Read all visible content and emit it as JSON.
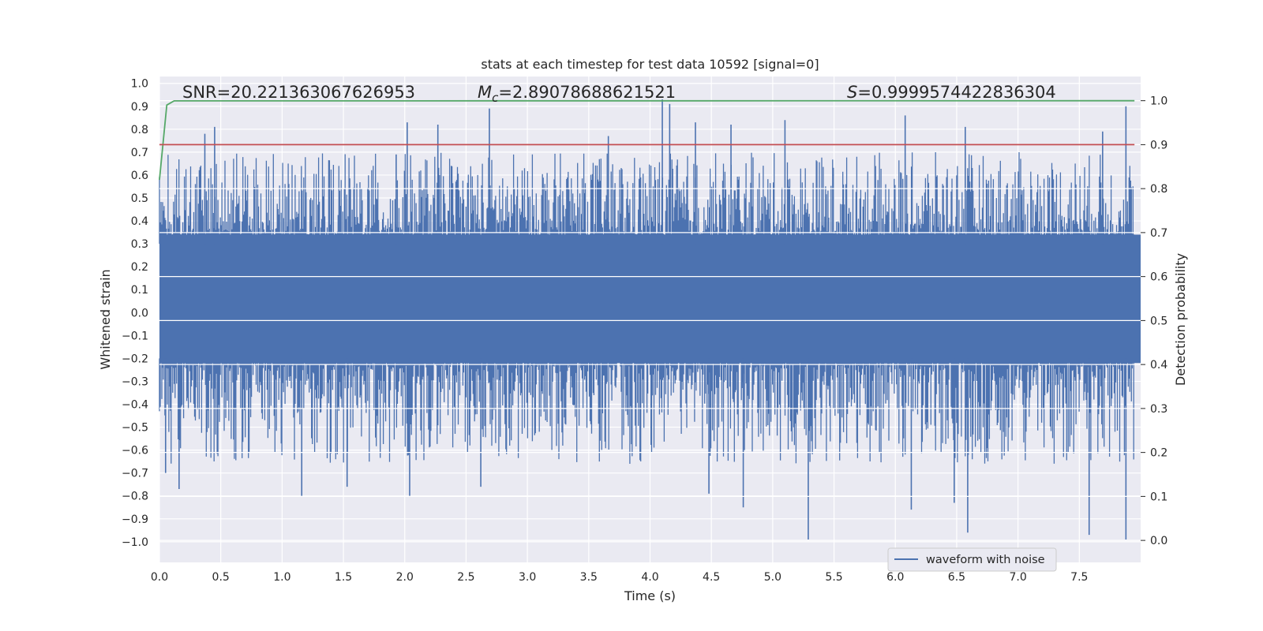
{
  "chart_data": {
    "type": "line",
    "title": "stats at each timestep for test data 10592 [signal=0]",
    "xlabel": "Time (s)",
    "ylabel": "Whitened strain",
    "y2label": "Detection probability",
    "xlim": [
      0.0,
      8.0
    ],
    "ylim": [
      -1.09,
      1.03
    ],
    "y2lim": [
      -0.05,
      1.055
    ],
    "x_ticks": [
      "0.0",
      "0.5",
      "1.0",
      "1.5",
      "2.0",
      "2.5",
      "3.0",
      "3.5",
      "4.0",
      "4.5",
      "5.0",
      "5.5",
      "6.0",
      "6.5",
      "7.0",
      "7.5"
    ],
    "y_ticks": [
      "1.0",
      "0.9",
      "0.8",
      "0.7",
      "0.6",
      "0.5",
      "0.4",
      "0.3",
      "0.2",
      "0.1",
      "0.0",
      "−0.1",
      "−0.2",
      "−0.3",
      "−0.4",
      "−0.5",
      "−0.6",
      "−0.7",
      "−0.8",
      "−0.9",
      "−1.0"
    ],
    "y2_ticks": [
      "1.0",
      "0.9",
      "0.8",
      "0.7",
      "0.6",
      "0.5",
      "0.4",
      "0.3",
      "0.2",
      "0.1",
      "0.0"
    ],
    "grid": true,
    "legend": {
      "position": "lower-right",
      "entries": [
        "waveform with noise"
      ]
    },
    "annotations": {
      "snr": "SNR=20.221363067626953",
      "mc_symbol": "M",
      "mc_sub": "c",
      "mc_value": "=2.89078688621521",
      "s_symbol": "S",
      "s_value": "=0.9999574422836304"
    },
    "series": [
      {
        "name": "waveform with noise",
        "axis": "left",
        "color": "#4c72b0",
        "band_low": -0.22,
        "band_high": 0.34,
        "spike_peaks": [
          {
            "x": 0.37,
            "y": 0.78
          },
          {
            "x": 0.45,
            "y": 0.81
          },
          {
            "x": 1.93,
            "y": 0.69
          },
          {
            "x": 2.02,
            "y": 0.83
          },
          {
            "x": 2.27,
            "y": 0.82
          },
          {
            "x": 2.69,
            "y": 0.89
          },
          {
            "x": 3.66,
            "y": 0.77
          },
          {
            "x": 4.1,
            "y": 0.93
          },
          {
            "x": 4.16,
            "y": 0.91
          },
          {
            "x": 4.37,
            "y": 0.83
          },
          {
            "x": 4.66,
            "y": 0.82
          },
          {
            "x": 5.1,
            "y": 0.84
          },
          {
            "x": 6.08,
            "y": 0.86
          },
          {
            "x": 6.57,
            "y": 0.81
          },
          {
            "x": 7.69,
            "y": 0.79
          },
          {
            "x": 7.88,
            "y": 0.9
          }
        ],
        "spike_troughs": [
          {
            "x": 0.05,
            "y": -0.7
          },
          {
            "x": 0.16,
            "y": -0.77
          },
          {
            "x": 1.16,
            "y": -0.8
          },
          {
            "x": 1.53,
            "y": -0.76
          },
          {
            "x": 2.04,
            "y": -0.8
          },
          {
            "x": 2.62,
            "y": -0.76
          },
          {
            "x": 4.48,
            "y": -0.79
          },
          {
            "x": 4.76,
            "y": -0.85
          },
          {
            "x": 5.29,
            "y": -0.99
          },
          {
            "x": 6.13,
            "y": -0.86
          },
          {
            "x": 6.48,
            "y": -0.83
          },
          {
            "x": 6.59,
            "y": -0.96
          },
          {
            "x": 7.58,
            "y": -0.97
          },
          {
            "x": 7.88,
            "y": -0.99
          }
        ]
      },
      {
        "axis": "right",
        "color": "#55a868",
        "x": [
          0.0,
          0.06,
          0.12,
          7.95
        ],
        "y": [
          0.82,
          0.99,
          0.9995,
          0.99996
        ]
      },
      {
        "axis": "right",
        "color": "#c44e52",
        "x": [
          0.0,
          7.95
        ],
        "y": [
          0.9,
          0.9
        ]
      }
    ]
  }
}
